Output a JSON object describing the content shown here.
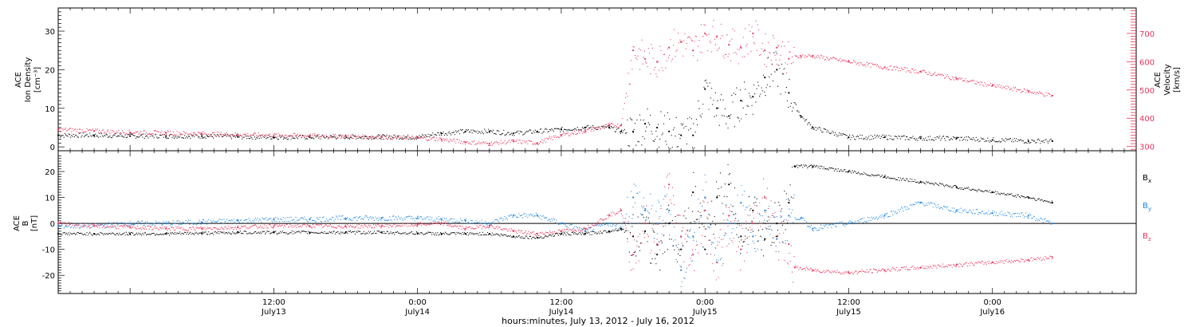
{
  "colors": {
    "black": "#000000",
    "pink": "#e8345c",
    "blue": "#1f87e0"
  },
  "x_axis": {
    "title": "hours:minutes, July 13, 2012 - July 16, 2012",
    "range_hours": [
      -30,
      60
    ],
    "ticks": [
      {
        "hours": -12,
        "time": "12:00",
        "date": "July13"
      },
      {
        "hours": 0,
        "time": "0:00",
        "date": "July14"
      },
      {
        "hours": 12,
        "time": "12:00",
        "date": "July14"
      },
      {
        "hours": 24,
        "time": "0:00",
        "date": "July15"
      },
      {
        "hours": 36,
        "time": "12:00",
        "date": "July15"
      },
      {
        "hours": 48,
        "time": "0:00",
        "date": "July16"
      }
    ]
  },
  "top_panel": {
    "left_label": [
      "ACE",
      "Ion Density"
    ],
    "left_unit": "[cm⁻³]",
    "right_label": [
      "ACE",
      "Velocity"
    ],
    "right_unit": "[km/s]",
    "left_ticks": [
      "0",
      "10",
      "20",
      "30"
    ],
    "right_ticks": [
      "300",
      "400",
      "500",
      "600",
      "700"
    ]
  },
  "bottom_panel": {
    "left_label": [
      "ACE",
      "B"
    ],
    "left_unit": "[nT]",
    "ticks": [
      "-20",
      "-10",
      "0",
      "10",
      "20"
    ],
    "legend": [
      {
        "base": "B",
        "sub": "x",
        "color": "#000000"
      },
      {
        "base": "B",
        "sub": "y",
        "color": "#1f87e0"
      },
      {
        "base": "B",
        "sub": "z",
        "color": "#e8345c"
      }
    ]
  },
  "chart_data": [
    {
      "type": "scatter",
      "title": "",
      "xlabel": "hours:minutes, July 13, 2012 - July 16, 2012",
      "xlim_hours": [
        -30,
        60
      ],
      "series": [
        {
          "name": "Ion Density",
          "axis": "left",
          "color": "#000000",
          "ylim": [
            -1,
            36
          ],
          "x": [
            -30,
            -27,
            -24,
            -21,
            -18,
            -15,
            -12,
            -9,
            -6,
            -3,
            0,
            2,
            4,
            6,
            8,
            10,
            12,
            14,
            16,
            17,
            18,
            19,
            20,
            21,
            22,
            23,
            24,
            25,
            26,
            27,
            28,
            29,
            30,
            31,
            32,
            33,
            36,
            39,
            42,
            45,
            48,
            51,
            53
          ],
          "y": [
            3,
            3,
            2.8,
            2.8,
            2.8,
            2.6,
            2.5,
            2.5,
            2.6,
            2.6,
            2.5,
            3.5,
            4,
            4,
            3.5,
            4,
            4.5,
            5,
            5,
            4,
            4,
            6,
            5,
            4,
            3,
            3,
            15,
            10,
            8,
            12,
            13,
            18,
            20,
            14,
            8,
            5,
            2.5,
            2.5,
            2.2,
            2.2,
            1.8,
            1.5,
            1.5
          ]
        },
        {
          "name": "Velocity",
          "axis": "right",
          "color": "#e8345c",
          "ylim": [
            285,
            790
          ],
          "x": [
            -30,
            -27,
            -24,
            -21,
            -18,
            -15,
            -12,
            -9,
            -6,
            -3,
            0,
            2,
            4,
            6,
            8,
            10,
            12,
            14,
            16,
            17,
            18,
            19,
            20,
            21,
            22,
            23,
            24,
            25,
            26,
            27,
            28,
            29,
            30,
            31,
            32,
            33,
            36,
            39,
            42,
            45,
            48,
            51,
            53
          ],
          "y": [
            360,
            355,
            350,
            348,
            345,
            342,
            340,
            338,
            335,
            333,
            330,
            325,
            315,
            310,
            318,
            312,
            340,
            355,
            375,
            375,
            640,
            610,
            600,
            650,
            670,
            640,
            700,
            690,
            660,
            650,
            700,
            640,
            650,
            610,
            620,
            620,
            600,
            580,
            565,
            540,
            515,
            495,
            480
          ]
        }
      ]
    },
    {
      "type": "scatter",
      "title": "",
      "xlabel": "hours:minutes, July 13, 2012 - July 16, 2012",
      "xlim_hours": [
        -30,
        60
      ],
      "ylim": [
        -27,
        28
      ],
      "series": [
        {
          "name": "Bx",
          "color": "#000000",
          "x": [
            -30,
            -27,
            -24,
            -21,
            -18,
            -15,
            -12,
            -9,
            -6,
            -3,
            0,
            2,
            4,
            6,
            8,
            10,
            12,
            14,
            16,
            17,
            18,
            19,
            20,
            21,
            22,
            23,
            24,
            25,
            26,
            27,
            28,
            29,
            30,
            31,
            31.5,
            33,
            36,
            39,
            42,
            45,
            48,
            51,
            53
          ],
          "y": [
            -4,
            -4,
            -4,
            -4,
            -3.8,
            -3.5,
            -3.5,
            -3.5,
            -3.5,
            -3.5,
            -3.8,
            -4,
            -4,
            -4,
            -5,
            -5.5,
            -4,
            -4,
            -3,
            -2,
            -5,
            -3,
            -12,
            0,
            -10,
            12,
            -10,
            10,
            15,
            -5,
            5,
            -6,
            0,
            8,
            22,
            22,
            20,
            18,
            16,
            14,
            12,
            10,
            8
          ]
        },
        {
          "name": "By",
          "color": "#1f87e0",
          "x": [
            -30,
            -27,
            -24,
            -21,
            -18,
            -15,
            -12,
            -9,
            -6,
            -3,
            0,
            2,
            4,
            6,
            8,
            10,
            12,
            14,
            16,
            17,
            18,
            19,
            20,
            21,
            22,
            23,
            24,
            25,
            26,
            27,
            28,
            29,
            30,
            31,
            32,
            33,
            36,
            39,
            42,
            45,
            48,
            51,
            53
          ],
          "y": [
            -1,
            -1,
            0,
            0,
            0.5,
            1,
            1.5,
            1.5,
            2,
            2,
            2,
            1.5,
            1,
            0,
            3,
            3,
            0,
            -3,
            0,
            -2,
            10,
            5,
            0,
            5,
            -18,
            -5,
            10,
            -15,
            0,
            8,
            -5,
            5,
            -6,
            3,
            2,
            -2,
            0,
            3,
            8,
            5,
            4,
            3,
            0
          ]
        },
        {
          "name": "Bz",
          "color": "#e8345c",
          "x": [
            -30,
            -27,
            -24,
            -21,
            -18,
            -15,
            -12,
            -9,
            -6,
            -3,
            0,
            2,
            4,
            6,
            8,
            10,
            12,
            14,
            16,
            17,
            18,
            19,
            20,
            21,
            22,
            23,
            24,
            25,
            26,
            27,
            28,
            29,
            30,
            31,
            31.5,
            33,
            36,
            39,
            42,
            45,
            48,
            51,
            53
          ],
          "y": [
            0,
            -1,
            -1.5,
            -2,
            -2,
            -1.5,
            -1,
            -1,
            -1.2,
            -1,
            -0.5,
            0,
            -2,
            -1,
            -3,
            -4,
            -3,
            -2,
            3,
            5,
            -12,
            0,
            -8,
            15,
            -5,
            -12,
            5,
            -15,
            3,
            -10,
            0,
            10,
            -5,
            -8,
            -17,
            -18,
            -19,
            -18,
            -17,
            -16,
            -15,
            -14,
            -13
          ]
        }
      ]
    }
  ]
}
